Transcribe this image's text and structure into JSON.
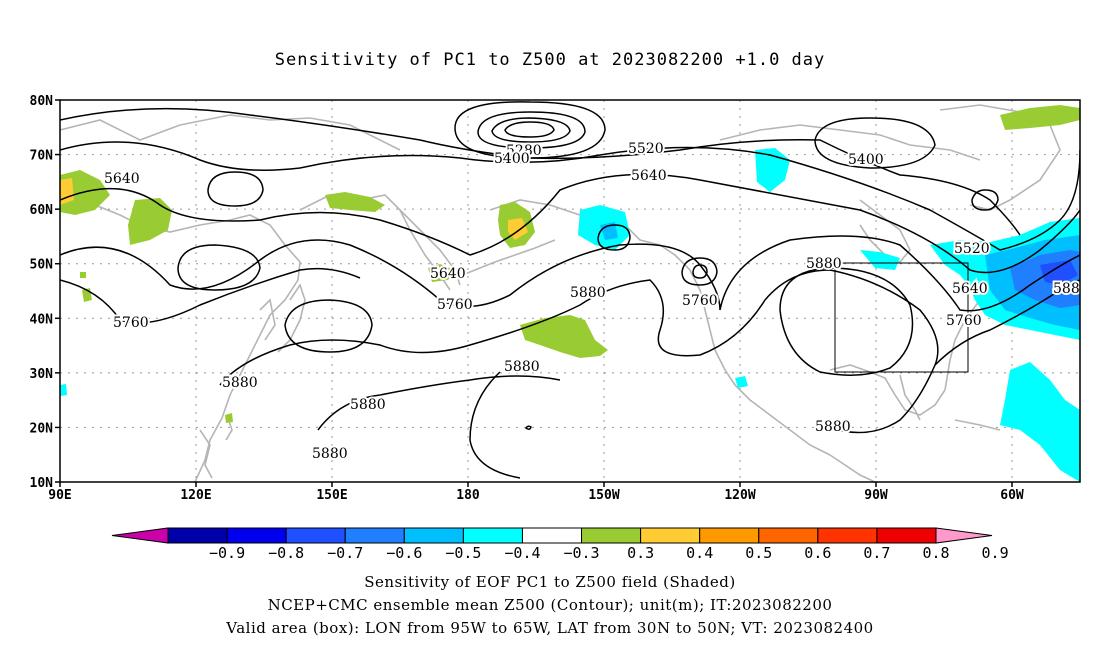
{
  "title": "Sensitivity of PC1 to Z500 at 2023082200 +1.0 day",
  "lat_labels": [
    "80N",
    "70N",
    "60N",
    "50N",
    "40N",
    "30N",
    "20N",
    "10N"
  ],
  "lon_labels": [
    "90E",
    "120E",
    "150E",
    "180",
    "150W",
    "120W",
    "90W",
    "60W"
  ],
  "contour_labels": {
    "l5280": "5280",
    "l5400a": "5400",
    "l5400b": "5400",
    "l5520a": "5520",
    "l5520b": "5520",
    "l5640a": "5640",
    "l5640b": "5640",
    "l5640c": "5640",
    "l5640d": "5640",
    "l5760a": "5760",
    "l5760b": "5760",
    "l5760c": "5760",
    "l5760d": "5760",
    "l5880a": "5880",
    "l5880b": "5880",
    "l5880c": "5880",
    "l5880d": "5880",
    "l5880e": "5880",
    "l5880f": "5880",
    "l5880g": "5880",
    "l5880h": "588"
  },
  "colorbar": {
    "labels": [
      "-0.9",
      "-0.8",
      "-0.7",
      "-0.6",
      "-0.5",
      "-0.4",
      "-0.3",
      "0.3",
      "0.4",
      "0.5",
      "0.6",
      "0.7",
      "0.8",
      "0.9"
    ],
    "colors": [
      "#cc00aa",
      "#0000aa",
      "#0000ee",
      "#1f4fff",
      "#1f7fff",
      "#00bfff",
      "#00ffff",
      "#ffffff",
      "#99cc33",
      "#ffcc33",
      "#ff9900",
      "#ff6600",
      "#ff3300",
      "#ee0000",
      "#ff99cc"
    ]
  },
  "footer": {
    "line1": "Sensitivity of EOF PC1 to Z500 field (Shaded)",
    "line2": "NCEP+CMC ensemble mean Z500 (Contour); unit(m); IT:2023082200",
    "line3": "Valid area (box): LON from 95W to 65W, LAT from 30N to 50N; VT: 2023082400"
  }
}
